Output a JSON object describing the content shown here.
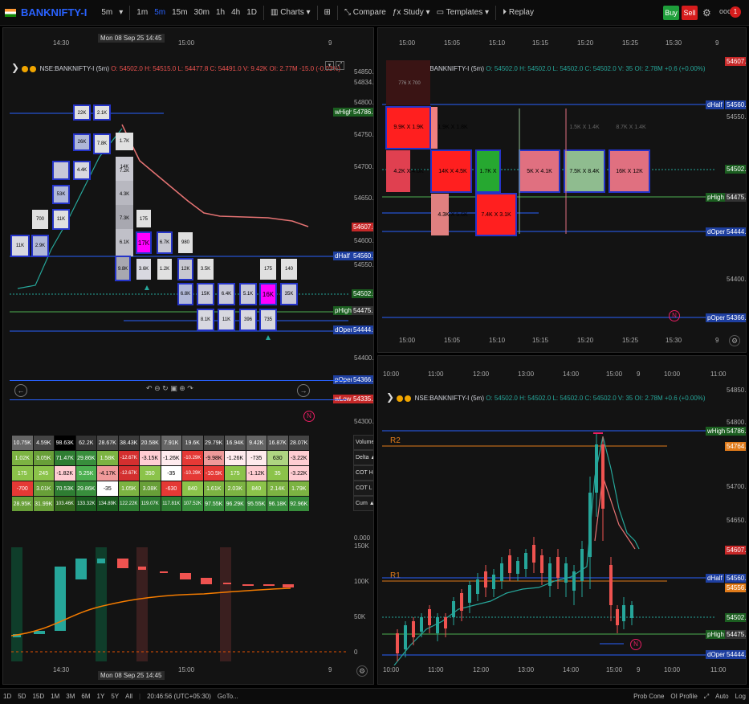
{
  "topbar": {
    "symbol": "BANKNIFTY-I",
    "timeframe": "5m",
    "intervals": [
      "1m",
      "5m",
      "15m",
      "30m",
      "1h",
      "4h",
      "1D"
    ],
    "active_interval": "5m",
    "charts_label": "Charts",
    "compare_label": "Compare",
    "study_label": "Study",
    "templates_label": "Templates",
    "replay_label": "Replay",
    "buy_label": "Buy",
    "sell_label": "Sell",
    "notif_count": "1"
  },
  "left_pane": {
    "time_top": [
      "14:30",
      "15:00",
      "9"
    ],
    "crosshair_label": "Mon 08 Sep 25 14:45",
    "legend": {
      "symbol": "NSE:BANKNIFTY-I (5m)",
      "o": "O: 54502.0",
      "h": "H: 54515.0",
      "l": "L: 54477.8",
      "c": "C: 54491.0",
      "v": "V: 9.42K",
      "oi": "OI: 2.77M",
      "chg": "-15.0",
      "chg_pct": "(-0.03%)"
    },
    "price_axis": [
      "54850.0",
      "54834.4",
      "54800.0",
      "54786.6",
      "54750.0",
      "54700.0",
      "54650.0",
      "54607.0",
      "54600.0",
      "54560.9",
      "54550.0",
      "54502.0",
      "54475.6",
      "54444.0",
      "54400.0",
      "54366.2",
      "54335.2",
      "54300.0"
    ],
    "tags": {
      "wHigh": "wHigh",
      "dHalf": "dHalf",
      "pHigh": "pHigh",
      "dOpen": "dOpen",
      "pOpen": "pOpen",
      "wLow": "wLow",
      "cur": "54607.0",
      "wHigh_v": "54786.6",
      "dHalf_v": "54560.9",
      "pHigh_v": "54475.6",
      "dOpen_v": "54444.0",
      "pOpen_v": "54366.2",
      "wLow_v": "54335.2",
      "last": "54502.0"
    },
    "footprint_cells": [
      "22K",
      "2.1K",
      "26K",
      "7.8K",
      "1.7K",
      "14K",
      "4.4K",
      "7.2K",
      "53K",
      "4.3K",
      "700",
      "11K",
      "7.3K",
      "175",
      "11K",
      "2.9K",
      "6.1K",
      "17K",
      "6.7K",
      "980",
      "9.8K",
      "3.6K",
      "1.2K",
      "12K",
      "3.5K",
      "175",
      "140",
      "6.8K",
      "15K",
      "6.4K",
      "5.1K",
      "16K",
      "35K",
      "8.1K",
      "11K",
      "396",
      "735"
    ],
    "stats_labels": [
      "Volume",
      "Delta ▲",
      "COT H",
      "COT L",
      "Cum ▲"
    ],
    "stats_rows": [
      [
        "10.75K",
        "4.59K",
        "98.63K",
        "62.2K",
        "28.67K",
        "38.43K",
        "20.58K",
        "7.91K",
        "19.6K",
        "29.79K",
        "16.94K",
        "9.42K",
        "16.87K",
        "28.07K"
      ],
      [
        "1.02K",
        "3.05K",
        "71.47K",
        "29.86K",
        "1.58K",
        "-12.67K",
        "-3.15K",
        "-1.26K",
        "-10.29K",
        "-9.98K",
        "-1.26K",
        "-735",
        "630",
        "-3.22K"
      ],
      [
        "175",
        "245",
        "-1.82K",
        "5.25K",
        "-4.17K",
        "-12.67K",
        "350",
        "-35",
        "-10.29K",
        "-10.5K",
        "175",
        "-1.12K",
        "35",
        "-3.22K"
      ],
      [
        "-700",
        "3.01K",
        "70.53K",
        "29.86K",
        "-35",
        "1.05K",
        "3.08K",
        "-630",
        "840",
        "1.61K",
        "2.03K",
        "840",
        "2.14K",
        "1.79K"
      ],
      [
        "28.95K",
        "31.99K",
        "103.46K",
        "133.32K",
        "134.89K",
        "122.22K",
        "119.07K",
        "117.81K",
        "107.52K",
        "97.55K",
        "96.29K",
        "95.55K",
        "96.18K",
        "92.96K"
      ]
    ],
    "vol_axis": [
      "0.000",
      "150K",
      "100K",
      "50K",
      "0"
    ],
    "time_bottom": [
      "14:30",
      "15:00",
      "9"
    ]
  },
  "tr_pane": {
    "time_top": [
      "15:00",
      "15:05",
      "15:10",
      "15:15",
      "15:20",
      "15:25",
      "15:30",
      "9"
    ],
    "legend": {
      "symbol": "NSE:BANKNIFTY-I (5m)",
      "o": "O: 54502.0",
      "h": "H: 54502.0",
      "l": "L: 54502.0",
      "c": "C: 54502.0",
      "v": "V: 35",
      "oi": "OI: 2.78M",
      "chg": "+0.6",
      "chg_pct": "(+0.00%)"
    },
    "price_axis": [
      "54607.0",
      "54560.9",
      "54550.0",
      "54502.0",
      "54475.6",
      "54444.0",
      "54400.0",
      "54366.2"
    ],
    "tags": {
      "dHalf": "dHalf",
      "pHigh": "pHigh",
      "dOpen": "dOpen",
      "pOpen": "pOpen"
    },
    "cells": [
      "9.9K X 1.9K",
      "1.9K X 1.8K",
      "4.2K X 4.8K",
      "14K X 4.5K",
      "1.7K X",
      "5K X 4.1K",
      "7.5K X 8.4K",
      "16K X 12K",
      "4.3K X 5.6K",
      "7.4K X 3.1K",
      "1.5K X 1.4K",
      "8.7K X 1.4K",
      "776 X 700"
    ],
    "time_bottom": [
      "15:00",
      "15:05",
      "15:10",
      "15:15",
      "15:20",
      "15:25",
      "15:30",
      "9"
    ]
  },
  "br_pane": {
    "time_top": [
      "10:00",
      "11:00",
      "12:00",
      "13:00",
      "14:00",
      "15:00",
      "9",
      "10:00",
      "11:00"
    ],
    "legend": {
      "symbol": "NSE:BANKNIFTY-I (5m)",
      "o": "O: 54502.0",
      "h": "H: 54502.0",
      "l": "L: 54502.0",
      "c": "C: 54502.0",
      "v": "V: 35",
      "oi": "OI: 2.78M",
      "chg": "+0.6",
      "chg_pct": "(+0.00%)"
    },
    "r2": "R2",
    "r1": "R1",
    "price_axis": [
      "54850.0",
      "54800.0",
      "54786.6",
      "54764.9",
      "54700.0",
      "54650.0",
      "54607.0",
      "54560.9",
      "54556.3",
      "54502.0",
      "54475.6",
      "54444.0"
    ],
    "tags": {
      "wHigh": "wHigh",
      "dHalf": "dHalf",
      "pHigh": "pHigh",
      "dOpen": "dOpen"
    },
    "time_bottom": [
      "10:00",
      "11:00",
      "12:00",
      "13:00",
      "14:00",
      "15:00",
      "9",
      "10:00",
      "11:00"
    ]
  },
  "bottombar": {
    "ranges": [
      "1D",
      "5D",
      "15D",
      "1M",
      "3M",
      "6M",
      "1Y",
      "5Y",
      "All"
    ],
    "clock": "20:46:56 (UTC+05:30)",
    "goto": "GoTo...",
    "prob_cone": "Prob Cone",
    "oi_profile": "OI Profile",
    "auto": "Auto",
    "log": "Log"
  }
}
